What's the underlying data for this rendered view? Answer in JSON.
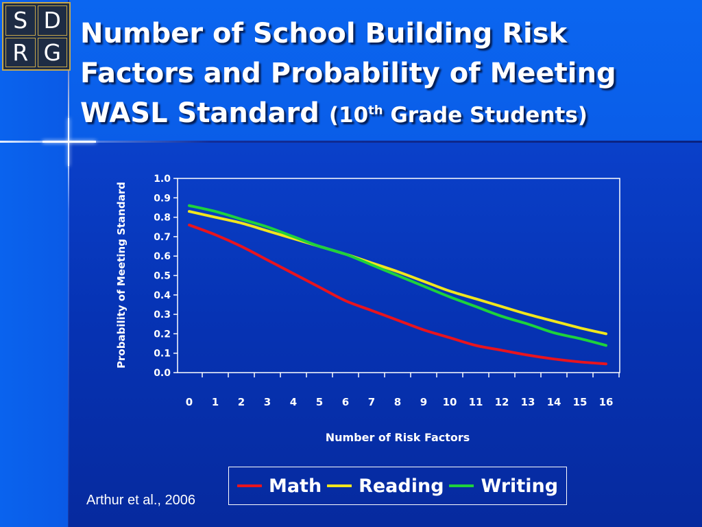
{
  "logo": {
    "letters": [
      "S",
      "D",
      "R",
      "G"
    ]
  },
  "title": {
    "main": "Number of School Building Risk Factors and Probability of Meeting WASL Standard",
    "sub_prefix": "(10",
    "sub_sup": "th",
    "sub_suffix": " Grade Students)"
  },
  "citation": "Arthur et al., 2006",
  "colors": {
    "math": "#e8141e",
    "reading": "#f0e61e",
    "writing": "#1ed23c",
    "text": "#ffffff"
  },
  "chart_data": {
    "type": "line",
    "title": "",
    "xlabel": "Number of Risk Factors",
    "ylabel": "Probability of Meeting Standard",
    "ylim": [
      0.0,
      1.0
    ],
    "yticks": [
      "0.0",
      "0.1",
      "0.2",
      "0.3",
      "0.4",
      "0.5",
      "0.6",
      "0.7",
      "0.8",
      "0.9",
      "1.0"
    ],
    "x": [
      0,
      1,
      2,
      3,
      4,
      5,
      6,
      7,
      8,
      9,
      10,
      11,
      12,
      13,
      14,
      15,
      16
    ],
    "xticks": [
      "0",
      "1",
      "2",
      "3",
      "4",
      "5",
      "6",
      "7",
      "8",
      "9",
      "10",
      "11",
      "12",
      "13",
      "14",
      "15",
      "16"
    ],
    "grid": false,
    "legend": "bottom",
    "series": [
      {
        "name": "Math",
        "color": "#e8141e",
        "values": [
          0.76,
          0.71,
          0.65,
          0.58,
          0.51,
          0.44,
          0.37,
          0.32,
          0.27,
          0.22,
          0.18,
          0.14,
          0.115,
          0.09,
          0.07,
          0.055,
          0.045
        ]
      },
      {
        "name": "Reading",
        "color": "#f0e61e",
        "values": [
          0.83,
          0.8,
          0.77,
          0.73,
          0.69,
          0.65,
          0.61,
          0.565,
          0.52,
          0.47,
          0.42,
          0.38,
          0.34,
          0.3,
          0.265,
          0.23,
          0.2
        ]
      },
      {
        "name": "Writing",
        "color": "#1ed23c",
        "values": [
          0.86,
          0.83,
          0.79,
          0.75,
          0.7,
          0.65,
          0.61,
          0.555,
          0.5,
          0.445,
          0.39,
          0.34,
          0.29,
          0.25,
          0.205,
          0.175,
          0.14
        ]
      }
    ]
  }
}
